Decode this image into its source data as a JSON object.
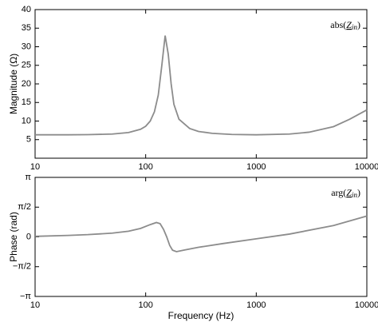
{
  "chart_data": [
    {
      "type": "line",
      "y_label": "Magnitude (Ω)",
      "annotation": [
        "abs(",
        "Z",
        "in",
        ")"
      ],
      "x": [
        10,
        20,
        30,
        50,
        70,
        90,
        100,
        110,
        120,
        130,
        140,
        150,
        160,
        170,
        180,
        200,
        250,
        300,
        400,
        600,
        1000,
        2000,
        3000,
        5000,
        7000,
        10000
      ],
      "values": [
        6.3,
        6.3,
        6.35,
        6.5,
        6.9,
        7.8,
        8.6,
        10,
        12.5,
        17,
        25,
        33,
        28,
        20,
        14.5,
        10.5,
        8,
        7.2,
        6.7,
        6.4,
        6.3,
        6.5,
        7,
        8.5,
        10.5,
        13
      ],
      "color": "#8c8c8c",
      "log_x": true,
      "xlim": [
        10,
        10000
      ],
      "xticks": [
        10,
        100,
        1000,
        10000
      ],
      "ylim": [
        0,
        40
      ],
      "yticks": [
        5,
        10,
        15,
        20,
        25,
        30,
        35,
        40
      ]
    },
    {
      "type": "line",
      "x_label": "Frequency (Hz)",
      "y_label": "Phase (rad)",
      "annotation": [
        "arg(",
        "Z",
        "in",
        ")"
      ],
      "x": [
        10,
        20,
        30,
        50,
        70,
        90,
        110,
        125,
        135,
        145,
        155,
        165,
        175,
        190,
        220,
        300,
        500,
        1000,
        2000,
        5000,
        10000
      ],
      "values": [
        0.03,
        0.08,
        0.12,
        0.2,
        0.3,
        0.45,
        0.65,
        0.76,
        0.7,
        0.4,
        0,
        -0.45,
        -0.7,
        -0.78,
        -0.7,
        -0.55,
        -0.35,
        -0.1,
        0.15,
        0.6,
        1.1
      ],
      "color": "#8c8c8c",
      "log_x": true,
      "xlim": [
        10,
        10000
      ],
      "xticks": [
        10,
        100,
        1000,
        10000
      ],
      "ylim": [
        -3.14159,
        3.14159
      ],
      "yticks": [
        {
          "value": -3.14159,
          "label": "−π"
        },
        {
          "value": -1.5708,
          "label": "−π/2"
        },
        0,
        {
          "value": 1.5708,
          "label": "π/2"
        },
        {
          "value": 3.14159,
          "label": "π"
        }
      ]
    }
  ]
}
